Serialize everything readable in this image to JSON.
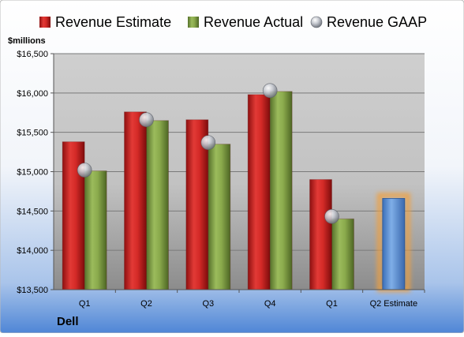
{
  "chart_data": {
    "type": "bar",
    "company": "Dell",
    "ylabel": "$millions",
    "ylim": [
      13500,
      16500
    ],
    "yticks": [
      13500,
      14000,
      14500,
      15000,
      15500,
      16000,
      16500
    ],
    "ytick_labels": [
      "$13,500",
      "$14,000",
      "$14,500",
      "$15,000",
      "$15,500",
      "$16,000",
      "$16,500"
    ],
    "grid": true,
    "legend_position": "top",
    "categories": [
      "Q1",
      "Q2",
      "Q3",
      "Q4",
      "Q1",
      "Q2 Estimate"
    ],
    "series": [
      {
        "name": "Revenue Estimate",
        "kind": "bar",
        "color": "#c8201f",
        "values": [
          15380,
          15760,
          15660,
          15980,
          14900,
          null
        ]
      },
      {
        "name": "Revenue Actual",
        "kind": "bar",
        "color": "#7d9a3f",
        "values": [
          15010,
          15650,
          15350,
          16020,
          14400,
          null
        ]
      },
      {
        "name": "Revenue GAAP",
        "kind": "marker",
        "color": "#c0c4cc",
        "values": [
          15020,
          15660,
          15370,
          16030,
          14430,
          null
        ]
      },
      {
        "name": "Q2 Estimate",
        "kind": "highlight-bar",
        "color": "#5b8fd6",
        "glow": "#f0a040",
        "values": [
          null,
          null,
          null,
          null,
          null,
          14660
        ]
      }
    ]
  }
}
